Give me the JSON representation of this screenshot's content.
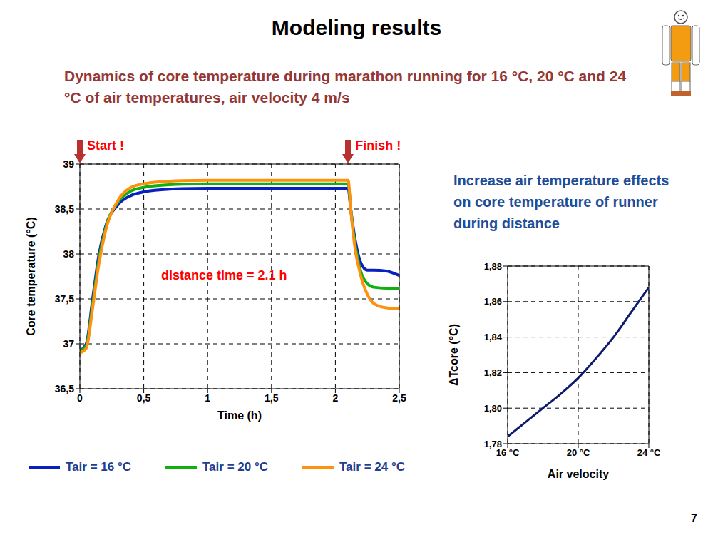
{
  "slide": {
    "title": "Modeling results",
    "subtitle": "Dynamics of core temperature during marathon running for 16 °C, 20 °C and 24 °C of air temperatures, air velocity 4 m/s",
    "note": "Increase  air temperature effects on core temperature of runner during distance",
    "page": "7"
  },
  "chart_data": [
    {
      "type": "line",
      "x_label": "Time (h)",
      "y_label": "Core temperature (°C)",
      "x": [
        0,
        0.05,
        0.1,
        0.15,
        0.2,
        0.3,
        0.4,
        0.5,
        0.7,
        1,
        2.1,
        2.12,
        2.15,
        2.2,
        2.25,
        2.3,
        2.4,
        2.5
      ],
      "series": [
        {
          "name": "Tair = 16 °C",
          "color": "#0a1fc0",
          "values": [
            36.92,
            37.0,
            37.5,
            38.0,
            38.3,
            38.55,
            38.65,
            38.69,
            38.72,
            38.73,
            38.73,
            38.5,
            38.2,
            37.9,
            37.82,
            37.82,
            37.81,
            37.76
          ]
        },
        {
          "name": "Tair = 20 °C",
          "color": "#10b010",
          "values": [
            36.92,
            36.98,
            37.45,
            37.95,
            38.28,
            38.58,
            38.7,
            38.74,
            38.77,
            38.78,
            38.78,
            38.5,
            38.15,
            37.8,
            37.67,
            37.63,
            37.62,
            37.62
          ]
        },
        {
          "name": "Tair = 24 °C",
          "color": "#ff9010",
          "values": [
            36.9,
            36.95,
            37.4,
            37.9,
            38.25,
            38.6,
            38.74,
            38.78,
            38.81,
            38.82,
            38.82,
            38.5,
            38.1,
            37.75,
            37.55,
            37.45,
            37.4,
            37.39
          ]
        }
      ],
      "xlim": [
        0,
        2.5
      ],
      "ylim": [
        36.5,
        39
      ],
      "xticks": [
        0,
        {
          "value": 0.5,
          "label": "0,5"
        },
        1,
        {
          "value": 1.5,
          "label": "1,5"
        },
        2,
        {
          "value": 2.5,
          "label": "2,5"
        }
      ],
      "yticks": [
        {
          "value": 36.5,
          "label": "36,5"
        },
        37,
        {
          "value": 37.5,
          "label": "37,5"
        },
        38,
        {
          "value": 38.5,
          "label": "38,5"
        },
        39
      ],
      "grid": true,
      "legend": "bottom",
      "annotations": [
        {
          "text": "Start !",
          "x": 0
        },
        {
          "text": "Finish !",
          "x": 2.1
        },
        {
          "text": "distance time = 2.1 h"
        }
      ]
    },
    {
      "type": "line",
      "x_label": "Air velocity",
      "y_label": "ΔTcore (°C)",
      "x": [
        16,
        17,
        18,
        19,
        20,
        21,
        22,
        23,
        24
      ],
      "values": [
        1.784,
        1.792,
        1.8,
        1.808,
        1.817,
        1.828,
        1.84,
        1.854,
        1.868
      ],
      "color": "#0d1b6e",
      "xlim": [
        16,
        24
      ],
      "ylim": [
        1.78,
        1.88
      ],
      "xticks": [
        {
          "value": 16,
          "label": "16 °C"
        },
        {
          "value": 20,
          "label": "20 °C"
        },
        {
          "value": 24,
          "label": "24 °C"
        }
      ],
      "yticks": [
        {
          "value": 1.78,
          "label": "1,78"
        },
        {
          "value": 1.8,
          "label": "1,80"
        },
        {
          "value": 1.82,
          "label": "1,82"
        },
        {
          "value": 1.84,
          "label": "1,84"
        },
        {
          "value": 1.86,
          "label": "1,86"
        },
        {
          "value": 1.88,
          "label": "1,88"
        }
      ],
      "grid": true
    }
  ]
}
